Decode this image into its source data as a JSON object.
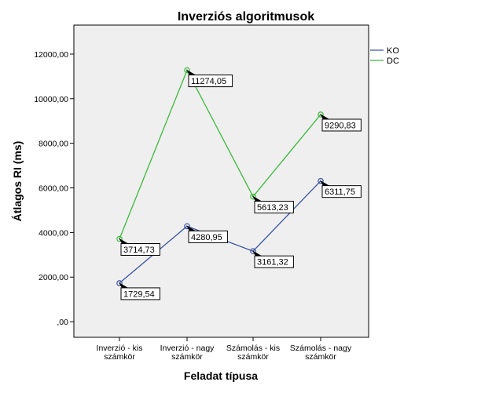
{
  "chart_data": {
    "type": "line",
    "title": "Inverziós algoritmusok",
    "xlabel": "Feladat típusa",
    "ylabel": "Átlagos RI (ms)",
    "categories": [
      [
        "Inverzió - kis",
        "számkör"
      ],
      [
        "Inverzió - nagy",
        "számkör"
      ],
      [
        "Számolás - kis",
        "számkör"
      ],
      [
        "Számolás - nagy",
        "számkör"
      ]
    ],
    "ylim": [
      -700,
      13300
    ],
    "yticks": [
      0,
      2000,
      4000,
      6000,
      8000,
      10000,
      12000
    ],
    "ytick_labels": [
      ",00",
      "2000,00",
      "4000,00",
      "6000,00",
      "8000,00",
      "10000,00",
      "12000,00"
    ],
    "grid": false,
    "legend_position": "top-right",
    "series": [
      {
        "name": "KO",
        "color": "#3a54a4",
        "values": [
          1729.54,
          4280.95,
          3161.32,
          6311.75
        ],
        "labels": [
          "1729,54",
          "4280,95",
          "3161,32",
          "6311,75"
        ]
      },
      {
        "name": "DC",
        "color": "#3cba3c",
        "values": [
          3714.73,
          11274.05,
          5613.23,
          9290.83
        ],
        "labels": [
          "3714,73",
          "11274,05",
          "5613,23",
          "9290,83"
        ]
      }
    ]
  }
}
